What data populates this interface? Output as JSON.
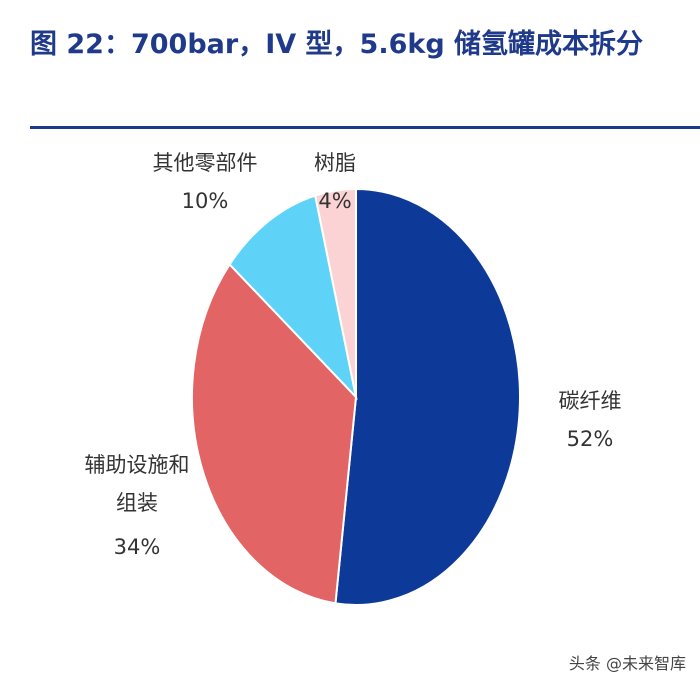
{
  "chart_data": {
    "type": "pie",
    "title": "图 22：700bar，IV 型，5.6kg 储氢罐成本拆分",
    "categories": [
      "碳纤维",
      "辅助设施和组装",
      "其他零部件",
      "树脂"
    ],
    "values": [
      52,
      34,
      10,
      4
    ],
    "value_labels": [
      "52%",
      "34%",
      "10%",
      "4%"
    ],
    "colors": [
      "#0d3a98",
      "#e26464",
      "#5fd3f7",
      "#fbd3d4"
    ]
  },
  "watermark": "头条 @未来智库"
}
